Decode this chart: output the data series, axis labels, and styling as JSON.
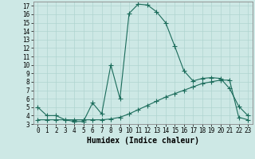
{
  "xlabel": "Humidex (Indice chaleur)",
  "bg_color": "#cde8e5",
  "line_color": "#1a6b5a",
  "grid_color": "#b0d4d0",
  "xlim": [
    -0.5,
    23.5
  ],
  "ylim": [
    3,
    17.5
  ],
  "yticks": [
    3,
    4,
    5,
    6,
    7,
    8,
    9,
    10,
    11,
    12,
    13,
    14,
    15,
    16,
    17
  ],
  "xticks": [
    0,
    1,
    2,
    3,
    4,
    5,
    6,
    7,
    8,
    9,
    10,
    11,
    12,
    13,
    14,
    15,
    16,
    17,
    18,
    19,
    20,
    21,
    22,
    23
  ],
  "line1_x": [
    0,
    1,
    2,
    3,
    4,
    5,
    6,
    7,
    8,
    9,
    10,
    11,
    12,
    13,
    14,
    15,
    16,
    17,
    18,
    19,
    20,
    21,
    22,
    23
  ],
  "line1_y": [
    5.0,
    4.0,
    4.0,
    3.5,
    3.3,
    3.3,
    5.5,
    4.2,
    10.0,
    6.0,
    16.1,
    17.2,
    17.1,
    16.3,
    15.0,
    12.2,
    9.3,
    8.1,
    8.4,
    8.5,
    8.4,
    7.2,
    5.1,
    4.0
  ],
  "line2_x": [
    0,
    1,
    2,
    3,
    4,
    5,
    6,
    7,
    8,
    9,
    10,
    11,
    12,
    13,
    14,
    15,
    16,
    17,
    18,
    19,
    20,
    21,
    22,
    23
  ],
  "line2_y": [
    3.5,
    3.5,
    3.5,
    3.5,
    3.5,
    3.5,
    3.5,
    3.5,
    3.6,
    3.8,
    4.2,
    4.7,
    5.2,
    5.7,
    6.2,
    6.6,
    7.0,
    7.4,
    7.8,
    8.0,
    8.2,
    8.2,
    3.8,
    3.5
  ],
  "xlabel_fontsize": 7,
  "tick_fontsize": 5.5
}
